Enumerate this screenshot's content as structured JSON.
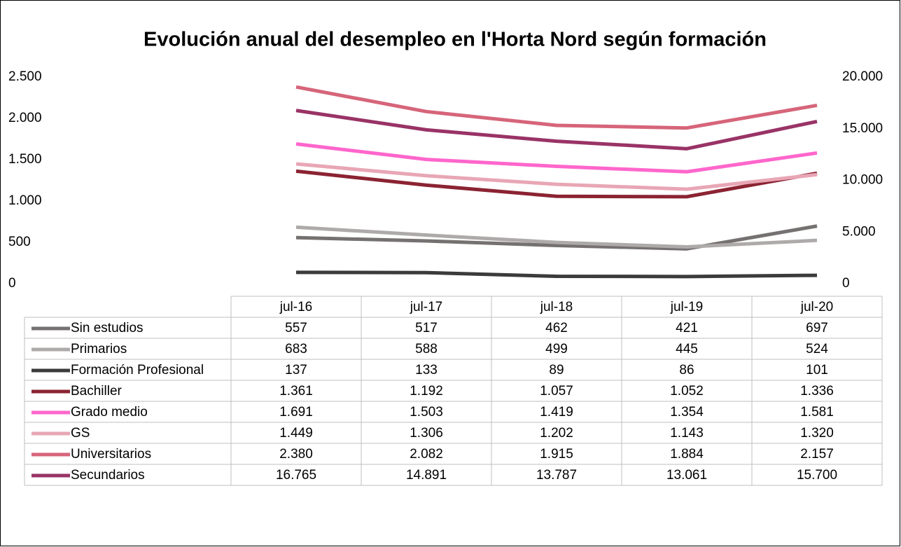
{
  "chart_data": {
    "type": "line",
    "title": "Evolución anual del desempleo en l'Horta Nord según formación",
    "categories": [
      "jul-16",
      "jul-17",
      "jul-18",
      "jul-19",
      "jul-20"
    ],
    "ylim": [
      0,
      2500
    ],
    "yticks": [
      0,
      500,
      {
        "value": 1000,
        "label": "1.000"
      },
      {
        "value": 1500,
        "label": "1.500"
      },
      {
        "value": 2000,
        "label": "2.000"
      },
      {
        "value": 2500,
        "label": "2.500"
      }
    ],
    "y2lim": [
      0,
      20000
    ],
    "y2ticks": [
      0,
      {
        "value": 5000,
        "label": "5.000"
      },
      {
        "value": 10000,
        "label": "10.000"
      },
      {
        "value": 15000,
        "label": "15.000"
      },
      {
        "value": 20000,
        "label": "20.000"
      }
    ],
    "series": [
      {
        "name": "Sin estudios",
        "color": "#767171",
        "values": [
          557,
          517,
          462,
          421,
          697
        ],
        "value_labels": [
          "557",
          "517",
          "462",
          "421",
          "697"
        ]
      },
      {
        "name": "Primarios",
        "color": "#aeaaaa",
        "values": [
          683,
          588,
          499,
          445,
          524
        ],
        "value_labels": [
          "683",
          "588",
          "499",
          "445",
          "524"
        ]
      },
      {
        "name": "Formación Profesional",
        "color": "#3b3b3b",
        "values": [
          137,
          133,
          89,
          86,
          101
        ],
        "value_labels": [
          "137",
          "133",
          "89",
          "86",
          "101"
        ]
      },
      {
        "name": "Bachiller",
        "color": "#8b2332",
        "values": [
          1361,
          1192,
          1057,
          1052,
          1336
        ],
        "value_labels": [
          "1.361",
          "1.192",
          "1.057",
          "1.052",
          "1.336"
        ]
      },
      {
        "name": "Grado medio",
        "color": "#ff66cc",
        "values": [
          1691,
          1503,
          1419,
          1354,
          1581
        ],
        "value_labels": [
          "1.691",
          "1.503",
          "1.419",
          "1.354",
          "1.581"
        ]
      },
      {
        "name": "GS",
        "color": "#e8a6b4",
        "values": [
          1449,
          1306,
          1202,
          1143,
          1320
        ],
        "value_labels": [
          "1.449",
          "1.306",
          "1.202",
          "1.143",
          "1.320"
        ]
      },
      {
        "name": "Universitarios",
        "color": "#d6657a",
        "values": [
          2380,
          2082,
          1915,
          1884,
          2157
        ],
        "value_labels": [
          "2.380",
          "2.082",
          "1.915",
          "1.884",
          "2.157"
        ]
      },
      {
        "name": "Secundarios",
        "color": "#993366",
        "axis": "y2",
        "values": [
          16765,
          14891,
          13787,
          13061,
          15700
        ],
        "value_labels": [
          "16.765",
          "14.891",
          "13.787",
          "13.061",
          "15.700"
        ]
      }
    ]
  }
}
